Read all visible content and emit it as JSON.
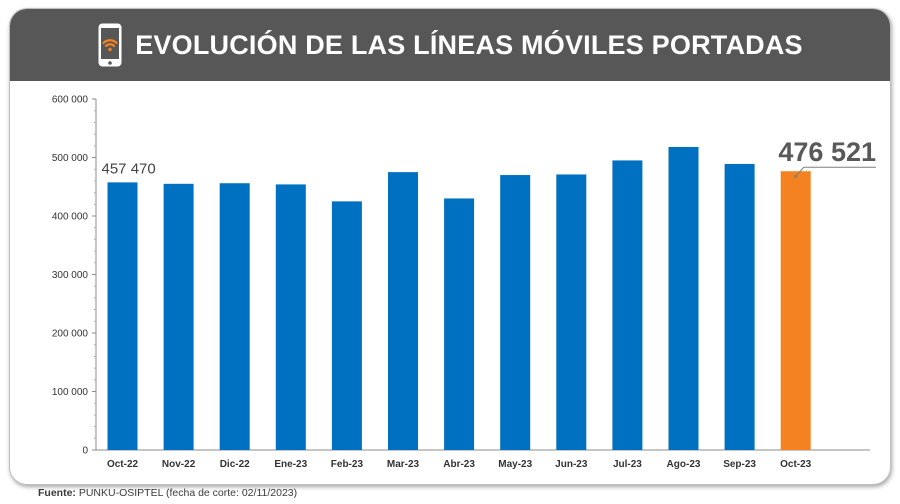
{
  "header": {
    "title": "EVOLUCIÓN DE LAS LÍNEAS MÓVILES PORTADAS",
    "icon": "phone-wifi-icon"
  },
  "source": {
    "label": "Fuente:",
    "text": "PUNKU-OSIPTEL (fecha de corte: 02/11/2023)"
  },
  "colors": {
    "bar": "#0070C0",
    "highlight": "#F58220",
    "header_bg": "#575757"
  },
  "chart_data": {
    "type": "bar",
    "title": "EVOLUCIÓN DE LAS LÍNEAS MÓVILES PORTADAS",
    "xlabel": "",
    "ylabel": "",
    "ylim": [
      0,
      600000
    ],
    "yticks": [
      0,
      100000,
      200000,
      300000,
      400000,
      500000,
      600000
    ],
    "ytick_labels": [
      "0",
      "100 000",
      "200 000",
      "300 000",
      "400 000",
      "500 000",
      "600 000"
    ],
    "categories": [
      "Oct-22",
      "Nov-22",
      "Dic-22",
      "Ene-23",
      "Feb-23",
      "Mar-23",
      "Abr-23",
      "May-23",
      "Jun-23",
      "Jul-23",
      "Ago-23",
      "Sep-23",
      "Oct-23"
    ],
    "values": [
      457470,
      455000,
      456000,
      454000,
      425000,
      475000,
      430000,
      470000,
      471000,
      495000,
      518000,
      489000,
      476521
    ],
    "highlight_index": 12,
    "data_labels": [
      {
        "index": 0,
        "text": "457 470"
      },
      {
        "index": 12,
        "text": "476 521"
      }
    ],
    "grid": false,
    "legend": "none"
  }
}
